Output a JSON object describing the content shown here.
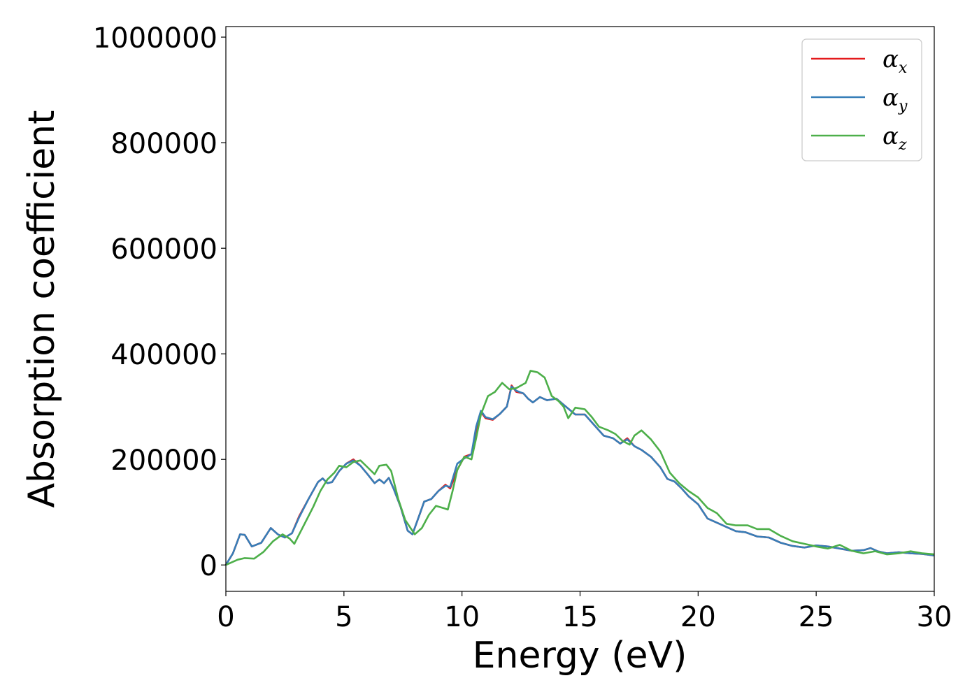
{
  "chart_data": {
    "type": "line",
    "title": "",
    "xlabel": "Energy (eV)",
    "ylabel": "Absorption coefficient",
    "xlim": [
      0,
      30
    ],
    "ylim": [
      -50000,
      1020000
    ],
    "xticks": [
      0,
      5,
      10,
      15,
      20,
      25,
      30
    ],
    "xtick_labels": [
      "0",
      "5",
      "10",
      "15",
      "20",
      "25",
      "30"
    ],
    "yticks": [
      0,
      200000,
      400000,
      600000,
      800000,
      1000000
    ],
    "ytick_labels": [
      "0",
      "200000",
      "400000",
      "600000",
      "800000",
      "1000000"
    ],
    "grid": false,
    "legend_position": "top-right",
    "series": [
      {
        "name": "α_x",
        "symbol": "α",
        "subscript": "x",
        "color": "#e41a1c",
        "points": [
          [
            0,
            0
          ],
          [
            0.3,
            22000
          ],
          [
            0.6,
            58000
          ],
          [
            0.8,
            57000
          ],
          [
            1.1,
            35000
          ],
          [
            1.5,
            42000
          ],
          [
            1.9,
            70000
          ],
          [
            2.2,
            58000
          ],
          [
            2.5,
            52000
          ],
          [
            2.8,
            60000
          ],
          [
            3.1,
            92000
          ],
          [
            3.5,
            125000
          ],
          [
            3.9,
            157000
          ],
          [
            4.1,
            164000
          ],
          [
            4.3,
            155000
          ],
          [
            4.5,
            157000
          ],
          [
            4.8,
            178000
          ],
          [
            5.1,
            192000
          ],
          [
            5.4,
            200000
          ],
          [
            5.7,
            188000
          ],
          [
            6.0,
            172000
          ],
          [
            6.3,
            155000
          ],
          [
            6.5,
            162000
          ],
          [
            6.7,
            155000
          ],
          [
            6.9,
            165000
          ],
          [
            7.1,
            145000
          ],
          [
            7.4,
            110000
          ],
          [
            7.7,
            65000
          ],
          [
            7.9,
            58000
          ],
          [
            8.2,
            95000
          ],
          [
            8.4,
            120000
          ],
          [
            8.7,
            125000
          ],
          [
            9.0,
            140000
          ],
          [
            9.3,
            152000
          ],
          [
            9.5,
            145000
          ],
          [
            9.8,
            180000
          ],
          [
            10.1,
            205000
          ],
          [
            10.4,
            210000
          ],
          [
            10.6,
            255000
          ],
          [
            10.8,
            290000
          ],
          [
            11.0,
            278000
          ],
          [
            11.3,
            275000
          ],
          [
            11.6,
            286000
          ],
          [
            11.9,
            300000
          ],
          [
            12.1,
            340000
          ],
          [
            12.3,
            328000
          ],
          [
            12.6,
            325000
          ],
          [
            12.8,
            315000
          ],
          [
            13.0,
            308000
          ],
          [
            13.3,
            318000
          ],
          [
            13.6,
            312000
          ],
          [
            14.0,
            315000
          ],
          [
            14.4,
            300000
          ],
          [
            14.8,
            285000
          ],
          [
            15.2,
            285000
          ],
          [
            15.6,
            265000
          ],
          [
            16.0,
            245000
          ],
          [
            16.4,
            240000
          ],
          [
            16.7,
            230000
          ],
          [
            17.0,
            240000
          ],
          [
            17.3,
            225000
          ],
          [
            17.6,
            218000
          ],
          [
            18.0,
            205000
          ],
          [
            18.4,
            185000
          ],
          [
            18.7,
            163000
          ],
          [
            19.0,
            158000
          ],
          [
            19.3,
            145000
          ],
          [
            19.6,
            130000
          ],
          [
            20.0,
            115000
          ],
          [
            20.4,
            88000
          ],
          [
            20.8,
            80000
          ],
          [
            21.2,
            72000
          ],
          [
            21.6,
            64000
          ],
          [
            22.0,
            62000
          ],
          [
            22.5,
            54000
          ],
          [
            23.0,
            52000
          ],
          [
            23.5,
            42000
          ],
          [
            24.0,
            36000
          ],
          [
            24.5,
            33000
          ],
          [
            25.0,
            37000
          ],
          [
            25.5,
            35000
          ],
          [
            26.0,
            31000
          ],
          [
            26.5,
            27000
          ],
          [
            27.0,
            28000
          ],
          [
            27.3,
            32000
          ],
          [
            27.6,
            26000
          ],
          [
            28.0,
            22000
          ],
          [
            28.5,
            24000
          ],
          [
            29.0,
            22000
          ],
          [
            29.5,
            21000
          ],
          [
            30.0,
            18000
          ]
        ]
      },
      {
        "name": "α_y",
        "symbol": "α",
        "subscript": "y",
        "color": "#377eb8",
        "points": [
          [
            0,
            0
          ],
          [
            0.3,
            22000
          ],
          [
            0.6,
            58000
          ],
          [
            0.8,
            57000
          ],
          [
            1.1,
            35000
          ],
          [
            1.5,
            42000
          ],
          [
            1.9,
            70000
          ],
          [
            2.2,
            58000
          ],
          [
            2.5,
            52000
          ],
          [
            2.8,
            60000
          ],
          [
            3.1,
            90000
          ],
          [
            3.5,
            125000
          ],
          [
            3.9,
            157000
          ],
          [
            4.1,
            164000
          ],
          [
            4.3,
            155000
          ],
          [
            4.5,
            157000
          ],
          [
            4.8,
            178000
          ],
          [
            5.1,
            192000
          ],
          [
            5.4,
            198000
          ],
          [
            5.7,
            188000
          ],
          [
            6.0,
            172000
          ],
          [
            6.3,
            155000
          ],
          [
            6.5,
            162000
          ],
          [
            6.7,
            155000
          ],
          [
            6.9,
            165000
          ],
          [
            7.1,
            145000
          ],
          [
            7.4,
            110000
          ],
          [
            7.7,
            65000
          ],
          [
            7.9,
            58000
          ],
          [
            8.2,
            95000
          ],
          [
            8.4,
            120000
          ],
          [
            8.7,
            125000
          ],
          [
            9.0,
            140000
          ],
          [
            9.3,
            150000
          ],
          [
            9.5,
            148000
          ],
          [
            9.8,
            192000
          ],
          [
            10.1,
            202000
          ],
          [
            10.4,
            210000
          ],
          [
            10.6,
            262000
          ],
          [
            10.8,
            292000
          ],
          [
            11.0,
            280000
          ],
          [
            11.3,
            276000
          ],
          [
            11.6,
            286000
          ],
          [
            11.9,
            300000
          ],
          [
            12.1,
            338000
          ],
          [
            12.3,
            330000
          ],
          [
            12.6,
            325000
          ],
          [
            12.8,
            315000
          ],
          [
            13.0,
            308000
          ],
          [
            13.3,
            318000
          ],
          [
            13.6,
            312000
          ],
          [
            14.0,
            315000
          ],
          [
            14.4,
            300000
          ],
          [
            14.8,
            285000
          ],
          [
            15.2,
            285000
          ],
          [
            15.6,
            265000
          ],
          [
            16.0,
            245000
          ],
          [
            16.4,
            240000
          ],
          [
            16.7,
            230000
          ],
          [
            17.0,
            238000
          ],
          [
            17.3,
            225000
          ],
          [
            17.6,
            218000
          ],
          [
            18.0,
            205000
          ],
          [
            18.4,
            185000
          ],
          [
            18.7,
            163000
          ],
          [
            19.0,
            158000
          ],
          [
            19.3,
            145000
          ],
          [
            19.6,
            130000
          ],
          [
            20.0,
            115000
          ],
          [
            20.4,
            88000
          ],
          [
            20.8,
            80000
          ],
          [
            21.2,
            72000
          ],
          [
            21.6,
            64000
          ],
          [
            22.0,
            62000
          ],
          [
            22.5,
            54000
          ],
          [
            23.0,
            52000
          ],
          [
            23.5,
            42000
          ],
          [
            24.0,
            36000
          ],
          [
            24.5,
            33000
          ],
          [
            25.0,
            37000
          ],
          [
            25.5,
            35000
          ],
          [
            26.0,
            31000
          ],
          [
            26.5,
            27000
          ],
          [
            27.0,
            28000
          ],
          [
            27.3,
            32000
          ],
          [
            27.6,
            26000
          ],
          [
            28.0,
            22000
          ],
          [
            28.5,
            24000
          ],
          [
            29.0,
            22000
          ],
          [
            29.5,
            21000
          ],
          [
            30.0,
            18000
          ]
        ]
      },
      {
        "name": "α_z",
        "symbol": "α",
        "subscript": "z",
        "color": "#4daf4a",
        "points": [
          [
            0,
            0
          ],
          [
            0.5,
            10000
          ],
          [
            0.8,
            13000
          ],
          [
            1.2,
            12000
          ],
          [
            1.6,
            25000
          ],
          [
            2.0,
            45000
          ],
          [
            2.4,
            58000
          ],
          [
            2.7,
            50000
          ],
          [
            2.9,
            40000
          ],
          [
            3.3,
            75000
          ],
          [
            3.7,
            110000
          ],
          [
            4.0,
            140000
          ],
          [
            4.3,
            162000
          ],
          [
            4.6,
            175000
          ],
          [
            4.8,
            188000
          ],
          [
            5.1,
            185000
          ],
          [
            5.4,
            195000
          ],
          [
            5.7,
            198000
          ],
          [
            6.0,
            185000
          ],
          [
            6.3,
            172000
          ],
          [
            6.5,
            188000
          ],
          [
            6.8,
            190000
          ],
          [
            7.0,
            178000
          ],
          [
            7.3,
            125000
          ],
          [
            7.6,
            85000
          ],
          [
            8.0,
            58000
          ],
          [
            8.3,
            70000
          ],
          [
            8.6,
            95000
          ],
          [
            8.9,
            112000
          ],
          [
            9.2,
            108000
          ],
          [
            9.4,
            105000
          ],
          [
            9.6,
            140000
          ],
          [
            9.8,
            180000
          ],
          [
            10.1,
            205000
          ],
          [
            10.4,
            200000
          ],
          [
            10.6,
            240000
          ],
          [
            10.8,
            285000
          ],
          [
            11.1,
            320000
          ],
          [
            11.4,
            328000
          ],
          [
            11.7,
            345000
          ],
          [
            12.0,
            333000
          ],
          [
            12.3,
            335000
          ],
          [
            12.7,
            345000
          ],
          [
            12.9,
            368000
          ],
          [
            13.2,
            365000
          ],
          [
            13.5,
            355000
          ],
          [
            13.8,
            320000
          ],
          [
            14.1,
            310000
          ],
          [
            14.3,
            300000
          ],
          [
            14.5,
            278000
          ],
          [
            14.8,
            298000
          ],
          [
            15.2,
            295000
          ],
          [
            15.5,
            280000
          ],
          [
            15.8,
            262000
          ],
          [
            16.2,
            255000
          ],
          [
            16.5,
            248000
          ],
          [
            16.8,
            235000
          ],
          [
            17.1,
            228000
          ],
          [
            17.3,
            245000
          ],
          [
            17.6,
            255000
          ],
          [
            18.0,
            238000
          ],
          [
            18.4,
            215000
          ],
          [
            18.8,
            175000
          ],
          [
            19.2,
            155000
          ],
          [
            19.6,
            140000
          ],
          [
            20.0,
            128000
          ],
          [
            20.4,
            108000
          ],
          [
            20.8,
            98000
          ],
          [
            21.2,
            78000
          ],
          [
            21.6,
            75000
          ],
          [
            22.1,
            75000
          ],
          [
            22.5,
            68000
          ],
          [
            23.0,
            68000
          ],
          [
            23.5,
            55000
          ],
          [
            24.0,
            45000
          ],
          [
            24.5,
            40000
          ],
          [
            25.0,
            35000
          ],
          [
            25.5,
            31000
          ],
          [
            26.0,
            38000
          ],
          [
            26.5,
            27000
          ],
          [
            27.0,
            22000
          ],
          [
            27.5,
            26000
          ],
          [
            28.0,
            20000
          ],
          [
            28.5,
            22000
          ],
          [
            29.0,
            26000
          ],
          [
            29.5,
            22000
          ],
          [
            30.0,
            20000
          ]
        ]
      }
    ]
  }
}
